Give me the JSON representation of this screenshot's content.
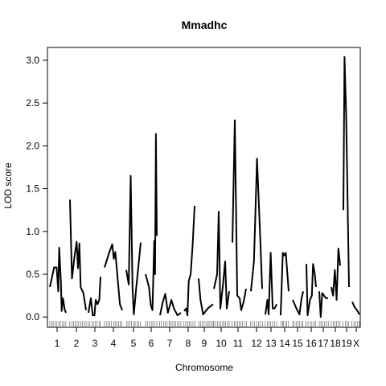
{
  "chart_data": {
    "type": "line",
    "title": "Mmadhc",
    "xlabel": "Chromosome",
    "ylabel": "LOD score",
    "ylim": [
      -0.12,
      3.15
    ],
    "y_ticks": [
      0.0,
      0.5,
      1.0,
      1.5,
      2.0,
      2.5,
      3.0
    ],
    "y_tick_labels": [
      "0.0",
      "0.5",
      "1.0",
      "1.5",
      "2.0",
      "2.5",
      "3.0"
    ],
    "grid": false,
    "legend": "none",
    "line_color": "#000000",
    "chromosomes": [
      {
        "name": "1",
        "points": [
          [
            0,
            0.35
          ],
          [
            0.5,
            0.58
          ],
          [
            0.8,
            0.58
          ],
          [
            1.0,
            0.3
          ],
          [
            1.1,
            0.81
          ],
          [
            1.3,
            0.42
          ],
          [
            1.4,
            0.07
          ],
          [
            1.55,
            0.22
          ],
          [
            1.75,
            0.09
          ],
          [
            1.9,
            0.05
          ]
        ]
      },
      {
        "name": "2",
        "points": [
          [
            0,
            1.37
          ],
          [
            0.15,
            0.45
          ],
          [
            0.35,
            0.72
          ],
          [
            0.5,
            0.88
          ],
          [
            0.6,
            0.57
          ],
          [
            0.7,
            0.86
          ],
          [
            0.8,
            0.35
          ],
          [
            1.0,
            0.28
          ],
          [
            1.2,
            0.08
          ]
        ]
      },
      {
        "name": "3",
        "points": [
          [
            0,
            0.05
          ],
          [
            0.2,
            0.22
          ],
          [
            0.35,
            0.02
          ],
          [
            0.5,
            0.02
          ],
          [
            0.6,
            0.2
          ],
          [
            0.75,
            0.15
          ],
          [
            0.9,
            0.2
          ],
          [
            1.0,
            0.47
          ]
        ]
      },
      {
        "name": "4",
        "points": [
          [
            0,
            0.58
          ],
          [
            0.3,
            0.75
          ],
          [
            0.5,
            0.85
          ],
          [
            0.6,
            0.68
          ],
          [
            0.7,
            0.76
          ],
          [
            0.85,
            0.45
          ],
          [
            1.0,
            0.15
          ],
          [
            1.15,
            0.08
          ]
        ]
      },
      {
        "name": "5",
        "points": [
          [
            0,
            0.55
          ],
          [
            0.2,
            0.38
          ],
          [
            0.35,
            1.65
          ],
          [
            0.5,
            0.35
          ],
          [
            0.6,
            0.03
          ],
          [
            0.8,
            0.35
          ],
          [
            1.0,
            0.65
          ],
          [
            1.15,
            0.87
          ]
        ]
      },
      {
        "name": "6",
        "points": [
          [
            0,
            0.5
          ],
          [
            0.2,
            0.35
          ],
          [
            0.3,
            0.14
          ],
          [
            0.4,
            0.08
          ],
          [
            0.5,
            0.89
          ],
          [
            0.55,
            0.5
          ],
          [
            0.6,
            2.14
          ],
          [
            0.65,
            0.95
          ]
        ]
      },
      {
        "name": "7",
        "points": [
          [
            0,
            0.02
          ],
          [
            0.15,
            0.17
          ],
          [
            0.3,
            0.27
          ],
          [
            0.45,
            0.05
          ],
          [
            0.65,
            0.2
          ],
          [
            0.8,
            0.1
          ],
          [
            1.0,
            0.02
          ],
          [
            1.2,
            0.05
          ]
        ]
      },
      {
        "name": "8",
        "points": [
          [
            0,
            0.07
          ],
          [
            0.15,
            0.1
          ],
          [
            0.25,
            0.02
          ],
          [
            0.35,
            0.42
          ],
          [
            0.5,
            0.5
          ],
          [
            0.65,
            0.85
          ],
          [
            0.8,
            1.3
          ]
        ]
      },
      {
        "name": "9",
        "points": [
          [
            0,
            0.45
          ],
          [
            0.1,
            0.2
          ],
          [
            0.25,
            0.03
          ],
          [
            0.5,
            0.1
          ],
          [
            0.8,
            0.15
          ]
        ]
      },
      {
        "name": "10",
        "points": [
          [
            0,
            0.33
          ],
          [
            0.2,
            0.5
          ],
          [
            0.3,
            1.23
          ],
          [
            0.4,
            0.1
          ],
          [
            0.55,
            0.35
          ],
          [
            0.7,
            0.65
          ],
          [
            0.8,
            0.1
          ],
          [
            0.95,
            0.3
          ]
        ]
      },
      {
        "name": "11",
        "points": [
          [
            0,
            0.87
          ],
          [
            0.15,
            2.3
          ],
          [
            0.3,
            0.25
          ],
          [
            0.45,
            0.22
          ],
          [
            0.55,
            0.08
          ],
          [
            0.7,
            0.18
          ],
          [
            0.85,
            0.33
          ]
        ]
      },
      {
        "name": "12",
        "points": [
          [
            0,
            0.3
          ],
          [
            0.15,
            0.65
          ],
          [
            0.3,
            1.85
          ],
          [
            0.45,
            0.95
          ],
          [
            0.55,
            0.33
          ]
        ]
      },
      {
        "name": "13",
        "points": [
          [
            0,
            0.03
          ],
          [
            0.15,
            0.2
          ],
          [
            0.25,
            0.03
          ],
          [
            0.4,
            0.75
          ],
          [
            0.55,
            0.1
          ],
          [
            0.7,
            0.1
          ],
          [
            0.85,
            0.15
          ]
        ]
      },
      {
        "name": "14",
        "points": [
          [
            0,
            0.02
          ],
          [
            0.15,
            0.75
          ],
          [
            0.25,
            0.72
          ],
          [
            0.35,
            0.75
          ],
          [
            0.55,
            0.3
          ]
        ]
      },
      {
        "name": "15",
        "points": [
          [
            0,
            0.2
          ],
          [
            0.3,
            0.1
          ],
          [
            0.55,
            0.03
          ],
          [
            0.7,
            0.2
          ],
          [
            0.85,
            0.3
          ]
        ]
      },
      {
        "name": "16",
        "points": [
          [
            0,
            0.62
          ],
          [
            0.1,
            0.02
          ],
          [
            0.3,
            0.2
          ],
          [
            0.45,
            0.25
          ],
          [
            0.55,
            0.62
          ],
          [
            0.7,
            0.5
          ],
          [
            0.8,
            0.35
          ]
        ]
      },
      {
        "name": "17",
        "points": [
          [
            0,
            0.3
          ],
          [
            0.1,
            0.0
          ],
          [
            0.2,
            0.28
          ],
          [
            0.45,
            0.22
          ],
          [
            0.6,
            0.22
          ]
        ]
      },
      {
        "name": "18",
        "points": [
          [
            0,
            0.35
          ],
          [
            0.15,
            0.25
          ],
          [
            0.3,
            0.55
          ],
          [
            0.45,
            0.2
          ],
          [
            0.6,
            0.8
          ],
          [
            0.75,
            0.6
          ]
        ]
      },
      {
        "name": "19",
        "points": [
          [
            0,
            1.25
          ],
          [
            0.08,
            3.04
          ],
          [
            0.2,
            2.35
          ],
          [
            0.4,
            0.35
          ]
        ]
      },
      {
        "name": "X",
        "points": [
          [
            0,
            0.18
          ],
          [
            0.3,
            0.12
          ],
          [
            0.65,
            0.08
          ],
          [
            1.0,
            0.03
          ]
        ]
      }
    ]
  }
}
